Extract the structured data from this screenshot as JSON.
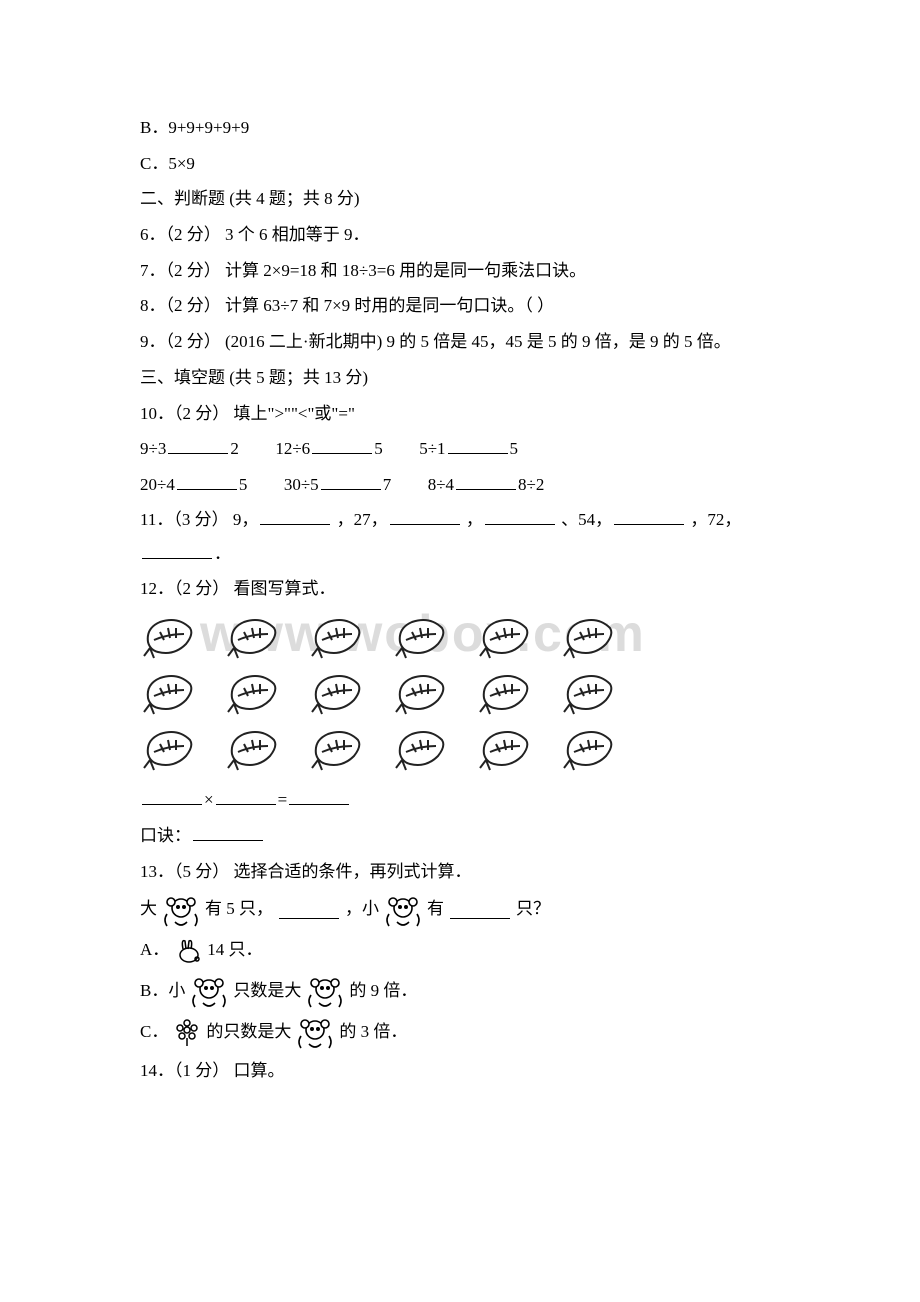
{
  "opt_b": "B．9+9+9+9+9",
  "opt_c": "C．5×9",
  "section2": "二、判断题 (共 4 题；共 8 分)",
  "q6": "6．（2 分） 3 个 6 相加等于 9．",
  "q7": "7．（2 分） 计算 2×9=18 和 18÷3=6 用的是同一句乘法口诀。",
  "q8": "8．（2 分） 计算 63÷7 和 7×9 时用的是同一句口诀。（ ）",
  "q9": "9．（2 分） (2016 二上·新北期中) 9 的 5 倍是 45，45 是 5 的 9 倍，是 9 的 5 倍。",
  "section3": "三、填空题 (共 5 题；共 13 分)",
  "q10": "10．（2 分） 填上\">\"\"<\"或\"=\"",
  "q10_a1": "9÷3",
  "q10_a2": "2",
  "q10_b1": "12÷6",
  "q10_b2": "5",
  "q10_c1": "5÷1",
  "q10_c2": "5",
  "q10_d1": "20÷4",
  "q10_d2": "5",
  "q10_e1": "30÷5",
  "q10_e2": "7",
  "q10_f1": "8÷4",
  "q10_f2": "8÷2",
  "q11_a": "11．（3 分） 9，",
  "q11_b": "，27，",
  "q11_c": "，",
  "q11_d": "、54，",
  "q11_e": "，72，",
  "q11_f": "．",
  "q12": "12．（2 分） 看图写算式．",
  "q12_mul": "×",
  "q12_eq": "=",
  "q12_koujue": "口诀：",
  "q13": "13．（5 分） 选择合适的条件，再列式计算．",
  "q13_p1": "大",
  "q13_p2": "有 5 只，",
  "q13_p3": "，小",
  "q13_p4": "有",
  "q13_p5": "只？",
  "q13_a1": "A．",
  "q13_a2": "14 只．",
  "q13_b1": "B．小",
  "q13_b2": "只数是大",
  "q13_b3": "的 9 倍．",
  "q13_c1": "C．",
  "q13_c2": "的只数是大",
  "q13_c3": "的 3 倍．",
  "q14": "14．（1 分） 口算。",
  "watermark": "www.wobox.com",
  "colors": {
    "text": "#000000",
    "bg": "#ffffff",
    "watermark": "#dcdcdc",
    "leaf_outline": "#222222"
  },
  "leaf_grid": {
    "rows": 3,
    "cols": 6
  },
  "fontsize_body": 17,
  "fontsize_watermark": 52
}
